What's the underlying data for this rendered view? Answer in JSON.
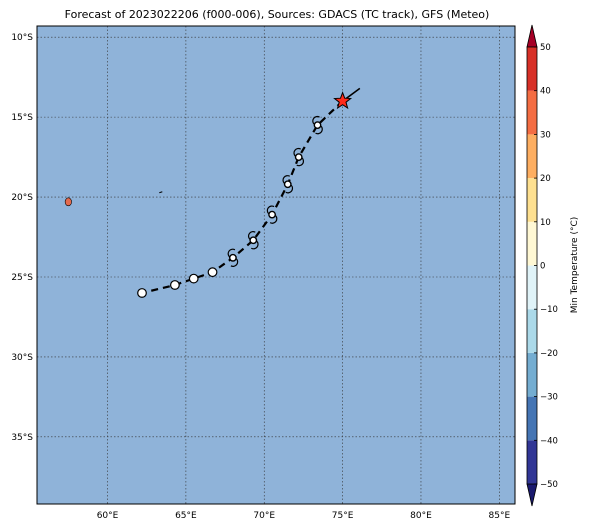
{
  "title": "Forecast of 2023022206 (f000-006), Sources: GDACS (TC track), GFS (Meteo)",
  "colors": {
    "ocean": "#8fb3d9",
    "grid": "#333333",
    "land": "#e46a4e",
    "track": "#000000",
    "star": "#ff2a1a"
  },
  "map": {
    "lon_range": [
      55.5,
      86
    ],
    "lat_range": [
      -39.2,
      -9.3
    ],
    "lon_ticks": [
      {
        "value": 60,
        "label": "60°E"
      },
      {
        "value": 65,
        "label": "65°E"
      },
      {
        "value": 70,
        "label": "70°E"
      },
      {
        "value": 75,
        "label": "75°E"
      },
      {
        "value": 80,
        "label": "80°E"
      },
      {
        "value": 85,
        "label": "85°E"
      }
    ],
    "lat_ticks": [
      {
        "value": -10,
        "label": "10°S"
      },
      {
        "value": -15,
        "label": "15°S"
      },
      {
        "value": -20,
        "label": "20°S"
      },
      {
        "value": -25,
        "label": "25°S"
      },
      {
        "value": -30,
        "label": "30°S"
      },
      {
        "value": -35,
        "label": "35°S"
      }
    ],
    "current_position": {
      "lon": 75.0,
      "lat": -14.0
    },
    "track_start": {
      "lon": 76.1,
      "lat": -13.2
    },
    "track_points": [
      {
        "lon": 73.4,
        "lat": -15.5,
        "symbol": "cyclone"
      },
      {
        "lon": 72.2,
        "lat": -17.5,
        "symbol": "cyclone"
      },
      {
        "lon": 71.5,
        "lat": -19.2,
        "symbol": "cyclone"
      },
      {
        "lon": 70.5,
        "lat": -21.1,
        "symbol": "cyclone"
      },
      {
        "lon": 69.3,
        "lat": -22.7,
        "symbol": "cyclone"
      },
      {
        "lon": 68.0,
        "lat": -23.8,
        "symbol": "cyclone"
      },
      {
        "lon": 66.7,
        "lat": -24.7,
        "symbol": "circle"
      },
      {
        "lon": 65.5,
        "lat": -25.1,
        "symbol": "circle"
      },
      {
        "lon": 64.3,
        "lat": -25.5,
        "symbol": "circle"
      },
      {
        "lon": 62.2,
        "lat": -26.0,
        "symbol": "circle"
      }
    ],
    "islands": [
      {
        "name": "mauritius",
        "lon": 57.5,
        "lat": -20.3
      },
      {
        "name": "rodrigues",
        "lon": 63.4,
        "lat": -19.7
      }
    ]
  },
  "colorbar": {
    "label": "Min Temperature (°C)",
    "min": -50,
    "max": 50,
    "ticks": [
      {
        "value": 50,
        "label": "50"
      },
      {
        "value": 40,
        "label": "40"
      },
      {
        "value": 30,
        "label": "30"
      },
      {
        "value": 20,
        "label": "20"
      },
      {
        "value": 10,
        "label": "10"
      },
      {
        "value": 0,
        "label": "0"
      },
      {
        "value": -10,
        "label": "−10"
      },
      {
        "value": -20,
        "label": "−20"
      },
      {
        "value": -30,
        "label": "−30"
      },
      {
        "value": -40,
        "label": "−40"
      },
      {
        "value": -50,
        "label": "−50"
      }
    ],
    "bands": [
      {
        "from": -50,
        "to": -40,
        "color": "#313695"
      },
      {
        "from": -40,
        "to": -30,
        "color": "#4575b4"
      },
      {
        "from": -30,
        "to": -20,
        "color": "#74add1"
      },
      {
        "from": -20,
        "to": -10,
        "color": "#abd9e9"
      },
      {
        "from": -10,
        "to": 0,
        "color": "#e0f3f8"
      },
      {
        "from": 0,
        "to": 10,
        "color": "#fff8d4"
      },
      {
        "from": 10,
        "to": 20,
        "color": "#fee090"
      },
      {
        "from": 20,
        "to": 30,
        "color": "#fdae61"
      },
      {
        "from": 30,
        "to": 40,
        "color": "#f46d43"
      },
      {
        "from": 40,
        "to": 50,
        "color": "#d73027"
      }
    ],
    "under_color": "#1a1a6e",
    "over_color": "#a50026"
  }
}
